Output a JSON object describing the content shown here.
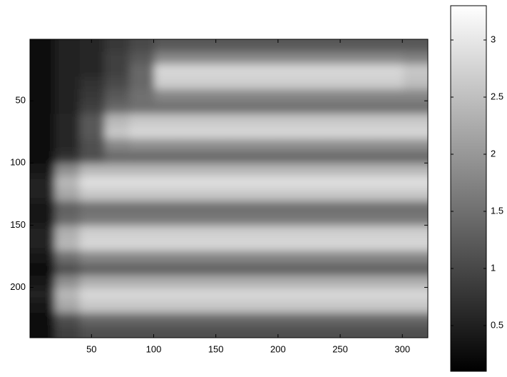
{
  "chart_data": {
    "type": "heatmap",
    "colormap": "gray",
    "xlim": [
      0.5,
      320.5
    ],
    "ylim": [
      0.5,
      240.5
    ],
    "y_reversed": true,
    "xticks": [
      50,
      100,
      150,
      200,
      250,
      300
    ],
    "yticks": [
      50,
      100,
      150,
      200
    ],
    "clim": [
      0.1,
      3.3
    ],
    "cticks": [
      0.5,
      1,
      1.5,
      2,
      2.5,
      3
    ],
    "z": [
      [
        0.3,
        0.5,
        0.6,
        0.8,
        1.0,
        1.2,
        1.2,
        1.2,
        1.2,
        1.2,
        1.2,
        1.2,
        1.2,
        1.2,
        1.2,
        1.2
      ],
      [
        0.3,
        0.5,
        0.6,
        0.9,
        1.2,
        1.8,
        1.8,
        1.8,
        1.8,
        1.8,
        1.8,
        1.8,
        1.8,
        1.8,
        1.8,
        1.7
      ],
      [
        0.3,
        0.5,
        0.6,
        0.9,
        1.4,
        2.8,
        2.8,
        2.8,
        2.8,
        2.8,
        2.8,
        2.8,
        2.8,
        2.8,
        2.8,
        2.6
      ],
      [
        0.3,
        0.5,
        0.7,
        1.0,
        1.4,
        2.7,
        2.7,
        2.7,
        2.7,
        2.7,
        2.7,
        2.7,
        2.7,
        2.7,
        2.7,
        2.5
      ],
      [
        0.3,
        0.5,
        0.8,
        1.2,
        1.5,
        1.8,
        1.8,
        1.8,
        1.8,
        1.8,
        1.8,
        1.8,
        1.8,
        1.8,
        1.8,
        1.8
      ],
      [
        0.3,
        0.5,
        0.9,
        1.4,
        1.5,
        1.5,
        1.5,
        1.5,
        1.5,
        1.5,
        1.5,
        1.5,
        1.5,
        1.5,
        1.5,
        1.5
      ],
      [
        0.3,
        0.6,
        1.2,
        2.4,
        2.6,
        2.6,
        2.6,
        2.6,
        2.6,
        2.6,
        2.6,
        2.6,
        2.6,
        2.6,
        2.6,
        2.6
      ],
      [
        0.3,
        0.6,
        1.2,
        2.6,
        2.8,
        2.8,
        2.8,
        2.8,
        2.8,
        2.8,
        2.8,
        2.8,
        2.8,
        2.8,
        2.8,
        2.8
      ],
      [
        0.3,
        0.6,
        1.1,
        1.8,
        1.9,
        1.9,
        1.9,
        1.9,
        1.9,
        1.9,
        1.9,
        1.9,
        1.9,
        1.9,
        1.9,
        1.9
      ],
      [
        0.3,
        0.7,
        1.1,
        1.4,
        1.4,
        1.4,
        1.4,
        1.4,
        1.4,
        1.4,
        1.4,
        1.4,
        1.4,
        1.4,
        1.4,
        1.4
      ],
      [
        0.4,
        1.9,
        2.4,
        2.4,
        2.4,
        2.4,
        2.4,
        2.4,
        2.4,
        2.4,
        2.4,
        2.4,
        2.4,
        2.4,
        2.4,
        2.4
      ],
      [
        0.5,
        2.4,
        2.9,
        2.9,
        2.9,
        2.9,
        2.9,
        2.9,
        2.9,
        2.9,
        2.9,
        2.9,
        2.9,
        2.9,
        2.9,
        2.9
      ],
      [
        0.5,
        2.2,
        2.6,
        2.6,
        2.6,
        2.6,
        2.6,
        2.6,
        2.6,
        2.6,
        2.6,
        2.6,
        2.6,
        2.6,
        2.6,
        2.6
      ],
      [
        0.4,
        1.3,
        1.5,
        1.5,
        1.5,
        1.5,
        1.5,
        1.5,
        1.5,
        1.5,
        1.5,
        1.5,
        1.5,
        1.5,
        1.5,
        1.5
      ],
      [
        0.4,
        1.4,
        1.6,
        1.6,
        1.6,
        1.6,
        1.6,
        1.6,
        1.6,
        1.6,
        1.6,
        1.6,
        1.6,
        1.6,
        1.6,
        1.6
      ],
      [
        0.5,
        2.3,
        2.7,
        2.7,
        2.7,
        2.7,
        2.7,
        2.7,
        2.7,
        2.7,
        2.7,
        2.7,
        2.7,
        2.7,
        2.7,
        2.7
      ],
      [
        0.5,
        2.4,
        2.8,
        2.8,
        2.8,
        2.8,
        2.8,
        2.8,
        2.8,
        2.8,
        2.8,
        2.8,
        2.8,
        2.8,
        2.8,
        2.8
      ],
      [
        0.4,
        1.5,
        1.8,
        1.8,
        1.8,
        1.8,
        1.8,
        1.8,
        1.8,
        1.8,
        1.8,
        1.8,
        1.8,
        1.8,
        1.8,
        1.8
      ],
      [
        0.3,
        1.1,
        1.3,
        1.3,
        1.3,
        1.3,
        1.3,
        1.3,
        1.3,
        1.3,
        1.3,
        1.3,
        1.3,
        1.3,
        1.3,
        1.3
      ],
      [
        0.4,
        1.9,
        2.3,
        2.3,
        2.3,
        2.3,
        2.3,
        2.3,
        2.3,
        2.3,
        2.3,
        2.3,
        2.3,
        2.3,
        2.3,
        2.3
      ],
      [
        0.5,
        2.4,
        2.8,
        2.8,
        2.8,
        2.8,
        2.8,
        2.8,
        2.8,
        2.8,
        2.8,
        2.8,
        2.8,
        2.8,
        2.8,
        2.8
      ],
      [
        0.4,
        2.2,
        2.6,
        2.6,
        2.6,
        2.6,
        2.6,
        2.6,
        2.6,
        2.6,
        2.6,
        2.6,
        2.6,
        2.6,
        2.6,
        2.6
      ],
      [
        0.3,
        1.1,
        1.4,
        1.4,
        1.4,
        1.4,
        1.4,
        1.4,
        1.4,
        1.4,
        1.4,
        1.4,
        1.4,
        1.4,
        1.4,
        1.4
      ],
      [
        0.3,
        0.9,
        1.1,
        1.1,
        1.1,
        1.1,
        1.1,
        1.1,
        1.1,
        1.1,
        1.1,
        1.1,
        1.1,
        1.1,
        1.1,
        1.1
      ]
    ]
  }
}
